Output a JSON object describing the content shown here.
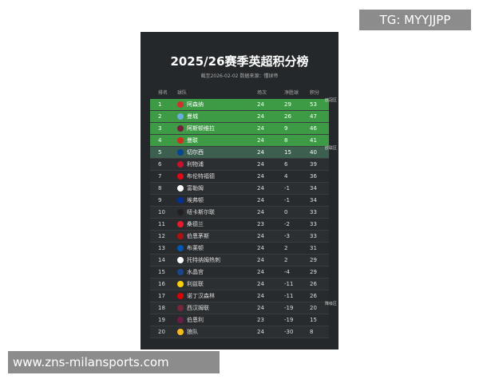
{
  "header": {
    "title": "2025/26赛季英超积分榜",
    "subtitle": "截至2026-02-02 数据来源：懂球帝"
  },
  "table": {
    "columns": [
      "排名",
      "球队",
      "场次",
      "净胜球",
      "积分"
    ],
    "rows": [
      [
        1,
        "阿森纳",
        24,
        29,
        53
      ],
      [
        2,
        "曼城",
        24,
        26,
        47
      ],
      [
        3,
        "阿斯顿维拉",
        24,
        9,
        46
      ],
      [
        4,
        "曼联",
        24,
        8,
        41
      ],
      [
        5,
        "切尔西",
        24,
        15,
        40
      ],
      [
        6,
        "利物浦",
        24,
        6,
        39
      ],
      [
        7,
        "布伦特福德",
        24,
        4,
        36
      ],
      [
        8,
        "富勒姆",
        24,
        -1,
        34
      ],
      [
        9,
        "埃弗顿",
        24,
        -1,
        34
      ],
      [
        10,
        "纽卡斯尔联",
        24,
        0,
        33
      ],
      [
        11,
        "桑德兰",
        23,
        -2,
        33
      ],
      [
        12,
        "伯恩茅斯",
        24,
        -3,
        33
      ],
      [
        13,
        "布莱顿",
        24,
        2,
        31
      ],
      [
        14,
        "托特纳姆热刺",
        24,
        2,
        29
      ],
      [
        15,
        "水晶宫",
        24,
        -4,
        29
      ],
      [
        16,
        "利兹联",
        24,
        -11,
        26
      ],
      [
        17,
        "诺丁汉森林",
        24,
        -11,
        26
      ],
      [
        18,
        "西汉姆联",
        24,
        -19,
        20
      ],
      [
        19,
        "伯恩利",
        23,
        -19,
        15
      ],
      [
        20,
        "狼队",
        24,
        -30,
        8
      ]
    ],
    "zones": [
      "欧冠区",
      "欧联区",
      "降级区"
    ]
  },
  "watermarks": [
    "TG: MYYJJPP",
    "www.zns-milansports.com"
  ]
}
